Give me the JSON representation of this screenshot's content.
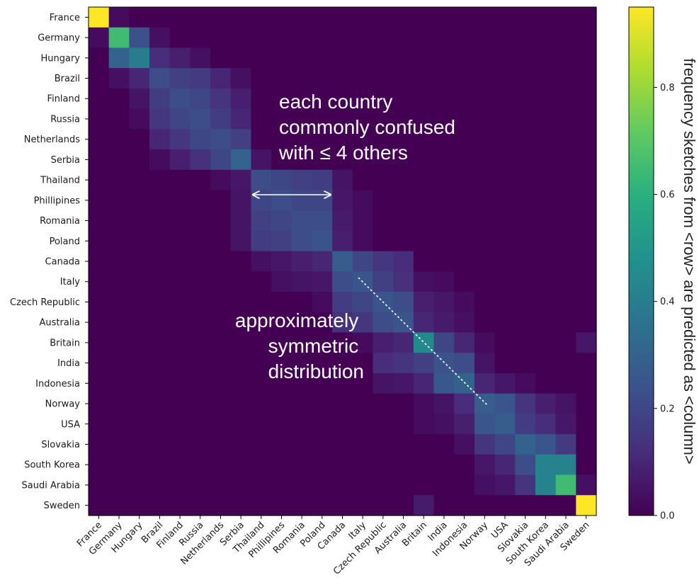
{
  "chart_data": {
    "type": "heatmap",
    "title": "",
    "xlabel": "",
    "ylabel": "",
    "rows": [
      "France",
      "Germany",
      "Hungary",
      "Brazil",
      "Finland",
      "Russia",
      "Netherlands",
      "Serbia",
      "Thailand",
      "Phillipines",
      "Romania",
      "Poland",
      "Canada",
      "Italy",
      "Czech Republic",
      "Australia",
      "Britain",
      "India",
      "Indonesia",
      "Norway",
      "USA",
      "Slovakia",
      "South Korea",
      "Saudi Arabia",
      "Sweden"
    ],
    "columns": [
      "France",
      "Germany",
      "Hungary",
      "Brazil",
      "Finland",
      "Russia",
      "Netherlands",
      "Serbia",
      "Thailand",
      "Phillipines",
      "Romania",
      "Poland",
      "Canada",
      "Italy",
      "Czech Republic",
      "Australia",
      "Britain",
      "India",
      "Indonesia",
      "Norway",
      "USA",
      "Slovakia",
      "South Korea",
      "Saudi Arabia",
      "Sweden"
    ],
    "values": [
      [
        0.95,
        0.03,
        0,
        0,
        0,
        0,
        0,
        0,
        0,
        0,
        0,
        0,
        0,
        0,
        0,
        0,
        0,
        0,
        0,
        0,
        0,
        0,
        0,
        0,
        0
      ],
      [
        0.03,
        0.65,
        0.23,
        0.04,
        0,
        0,
        0,
        0,
        0,
        0,
        0,
        0,
        0,
        0,
        0,
        0,
        0,
        0,
        0,
        0,
        0,
        0,
        0,
        0,
        0
      ],
      [
        0,
        0.3,
        0.4,
        0.12,
        0.08,
        0.04,
        0,
        0,
        0,
        0,
        0,
        0,
        0,
        0,
        0,
        0,
        0,
        0,
        0,
        0,
        0,
        0,
        0,
        0,
        0
      ],
      [
        0,
        0.04,
        0.1,
        0.22,
        0.18,
        0.16,
        0.1,
        0.04,
        0,
        0,
        0,
        0,
        0,
        0,
        0,
        0,
        0,
        0,
        0,
        0,
        0,
        0,
        0,
        0,
        0
      ],
      [
        0,
        0,
        0.05,
        0.17,
        0.22,
        0.2,
        0.14,
        0.08,
        0,
        0,
        0,
        0,
        0,
        0,
        0,
        0,
        0,
        0,
        0,
        0,
        0,
        0,
        0,
        0,
        0
      ],
      [
        0,
        0,
        0.03,
        0.15,
        0.2,
        0.22,
        0.17,
        0.1,
        0,
        0,
        0,
        0,
        0,
        0,
        0,
        0,
        0,
        0,
        0,
        0,
        0,
        0,
        0,
        0,
        0
      ],
      [
        0,
        0,
        0,
        0.1,
        0.15,
        0.2,
        0.22,
        0.18,
        0,
        0,
        0,
        0,
        0,
        0,
        0,
        0,
        0,
        0,
        0,
        0,
        0,
        0,
        0,
        0,
        0
      ],
      [
        0,
        0,
        0,
        0.03,
        0.08,
        0.13,
        0.2,
        0.3,
        0.05,
        0,
        0,
        0,
        0,
        0,
        0,
        0,
        0,
        0,
        0,
        0,
        0,
        0,
        0,
        0,
        0
      ],
      [
        0,
        0,
        0,
        0,
        0,
        0,
        0.03,
        0.06,
        0.22,
        0.2,
        0.18,
        0.17,
        0.05,
        0,
        0,
        0,
        0,
        0,
        0,
        0,
        0,
        0,
        0,
        0,
        0
      ],
      [
        0,
        0,
        0,
        0,
        0,
        0,
        0,
        0.05,
        0.2,
        0.22,
        0.2,
        0.2,
        0.06,
        0.03,
        0,
        0,
        0,
        0,
        0,
        0,
        0,
        0,
        0,
        0,
        0
      ],
      [
        0,
        0,
        0,
        0,
        0,
        0,
        0,
        0.05,
        0.18,
        0.2,
        0.22,
        0.22,
        0.07,
        0.03,
        0,
        0,
        0,
        0,
        0,
        0,
        0,
        0,
        0,
        0,
        0
      ],
      [
        0,
        0,
        0,
        0,
        0,
        0,
        0,
        0.05,
        0.17,
        0.18,
        0.22,
        0.24,
        0.08,
        0.03,
        0,
        0,
        0,
        0,
        0,
        0,
        0,
        0,
        0,
        0,
        0
      ],
      [
        0,
        0,
        0,
        0,
        0,
        0,
        0,
        0,
        0.04,
        0.06,
        0.08,
        0.1,
        0.28,
        0.2,
        0.15,
        0.12,
        0,
        0,
        0,
        0,
        0,
        0,
        0,
        0,
        0
      ],
      [
        0,
        0,
        0,
        0,
        0,
        0,
        0,
        0,
        0,
        0.04,
        0.05,
        0.06,
        0.22,
        0.25,
        0.18,
        0.13,
        0.04,
        0.03,
        0,
        0,
        0,
        0,
        0,
        0,
        0
      ],
      [
        0,
        0,
        0,
        0,
        0,
        0,
        0,
        0,
        0,
        0,
        0,
        0.03,
        0.17,
        0.2,
        0.25,
        0.22,
        0.08,
        0.06,
        0.03,
        0,
        0,
        0,
        0,
        0,
        0
      ],
      [
        0,
        0,
        0,
        0,
        0,
        0,
        0,
        0,
        0,
        0,
        0,
        0,
        0.13,
        0.15,
        0.22,
        0.25,
        0.1,
        0.07,
        0.04,
        0,
        0,
        0,
        0,
        0,
        0
      ],
      [
        0,
        0,
        0,
        0,
        0,
        0,
        0,
        0,
        0,
        0,
        0,
        0,
        0,
        0.03,
        0.08,
        0.1,
        0.45,
        0.2,
        0.1,
        0.03,
        0,
        0,
        0,
        0,
        0.06
      ],
      [
        0,
        0,
        0,
        0,
        0,
        0,
        0,
        0,
        0,
        0,
        0,
        0,
        0,
        0,
        0.12,
        0.14,
        0.18,
        0.24,
        0.22,
        0.05,
        0,
        0,
        0,
        0,
        0
      ],
      [
        0,
        0,
        0,
        0,
        0,
        0,
        0,
        0,
        0,
        0,
        0,
        0,
        0,
        0,
        0.05,
        0.06,
        0.1,
        0.26,
        0.3,
        0.1,
        0.06,
        0.03,
        0,
        0,
        0
      ],
      [
        0,
        0,
        0,
        0,
        0,
        0,
        0,
        0,
        0,
        0,
        0,
        0,
        0,
        0,
        0,
        0,
        0.03,
        0.05,
        0.12,
        0.28,
        0.25,
        0.14,
        0.08,
        0.05,
        0
      ],
      [
        0,
        0,
        0,
        0,
        0,
        0,
        0,
        0,
        0,
        0,
        0,
        0,
        0,
        0,
        0,
        0,
        0.03,
        0.04,
        0.08,
        0.25,
        0.28,
        0.17,
        0.12,
        0.06,
        0
      ],
      [
        0,
        0,
        0,
        0,
        0,
        0,
        0,
        0,
        0,
        0,
        0,
        0,
        0,
        0,
        0,
        0,
        0,
        0,
        0.04,
        0.14,
        0.2,
        0.3,
        0.25,
        0.16,
        0
      ],
      [
        0,
        0,
        0,
        0,
        0,
        0,
        0,
        0,
        0,
        0,
        0,
        0,
        0,
        0,
        0,
        0,
        0,
        0,
        0,
        0.06,
        0.1,
        0.22,
        0.42,
        0.42,
        0
      ],
      [
        0,
        0,
        0,
        0,
        0,
        0,
        0,
        0,
        0,
        0,
        0,
        0,
        0,
        0,
        0,
        0,
        0,
        0,
        0,
        0.04,
        0.06,
        0.14,
        0.42,
        0.65,
        0.04
      ],
      [
        0,
        0,
        0,
        0,
        0,
        0,
        0,
        0,
        0,
        0,
        0,
        0,
        0,
        0,
        0,
        0,
        0.07,
        0,
        0,
        0,
        0,
        0,
        0,
        0,
        0.95
      ]
    ],
    "colormap": "viridis",
    "vmin": 0.0,
    "vmax": 0.95,
    "colorbar": {
      "label": "frequency sketches from <row> are predicted as <column>",
      "ticks": [
        "0.0",
        "0.2",
        "0.4",
        "0.6",
        "0.8"
      ],
      "tick_values": [
        0.0,
        0.2,
        0.4,
        0.6,
        0.8
      ]
    },
    "annotations": [
      {
        "lines": [
          "each country",
          "commonly confused",
          "with ≤ 4 others"
        ]
      },
      {
        "lines": [
          "approximately",
          "symmetric",
          "distribution"
        ]
      }
    ]
  }
}
